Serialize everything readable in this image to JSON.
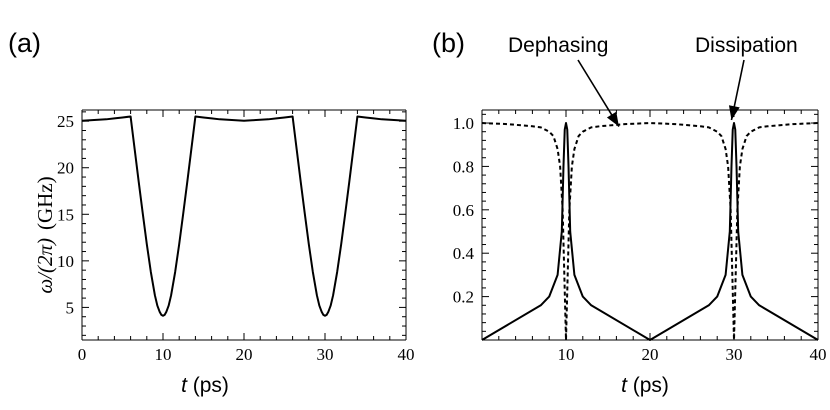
{
  "chart_data": [
    {
      "panel_label": "(a)",
      "type": "line",
      "xlabel_italic": "t",
      "xlabel_unit": " (ps)",
      "ylabel_math": "ω/(2π)",
      "ylabel_unit": "(GHz)",
      "xlim": [
        0,
        40
      ],
      "ylim": [
        1.5,
        26.2
      ],
      "xticks": [
        0,
        10,
        20,
        30,
        40
      ],
      "yticks": [
        5,
        10,
        15,
        20,
        25
      ],
      "series": [
        {
          "style": "solid",
          "x": [
            0,
            1,
            2,
            3,
            4,
            5,
            6,
            6.5,
            7,
            7.5,
            8,
            8.5,
            9,
            9.3,
            9.6,
            9.8,
            10,
            10.2,
            10.4,
            10.7,
            11,
            11.5,
            12,
            12.5,
            13,
            14,
            15,
            16,
            17,
            18,
            19,
            20,
            21,
            22,
            23,
            24,
            25,
            26,
            26.5,
            27,
            27.5,
            28,
            28.5,
            29,
            29.3,
            29.6,
            29.8,
            30,
            30.2,
            30.4,
            30.7,
            31,
            31.5,
            32,
            32.5,
            33,
            34,
            35,
            36,
            37,
            38,
            39,
            40
          ],
          "y": [
            25.05,
            25.1,
            25.15,
            25.2,
            25.3,
            25.4,
            25.5,
            22.0,
            18.5,
            15.1,
            11.8,
            8.8,
            6.3,
            5.2,
            4.5,
            4.2,
            4.1,
            4.2,
            4.5,
            5.2,
            6.3,
            8.8,
            11.8,
            15.1,
            18.5,
            25.5,
            25.4,
            25.3,
            25.2,
            25.15,
            25.1,
            25.05,
            25.1,
            25.15,
            25.2,
            25.3,
            25.4,
            25.5,
            22.0,
            18.5,
            15.1,
            11.8,
            8.8,
            6.3,
            5.2,
            4.5,
            4.2,
            4.1,
            4.2,
            4.5,
            5.2,
            6.3,
            8.8,
            11.8,
            15.1,
            18.5,
            25.5,
            25.4,
            25.3,
            25.2,
            25.15,
            25.1,
            25.05
          ]
        }
      ]
    },
    {
      "panel_label": "(b)",
      "type": "line",
      "xlabel_italic": "t",
      "xlabel_unit": " (ps)",
      "xlim": [
        0,
        40
      ],
      "ylim": [
        0,
        1.06
      ],
      "xticks": [
        10,
        20,
        30,
        40
      ],
      "yticks": [
        0.2,
        0.4,
        0.6,
        0.8,
        1.0
      ],
      "ytick_labels": [
        "0.2",
        "0.4",
        "0.6",
        "0.8",
        "1.0"
      ],
      "annotations": [
        {
          "text": "Dephasing",
          "target_x": 16.3,
          "target_y": 0.97
        },
        {
          "text": "Dissipation",
          "target_x": 29.7,
          "target_y": 1.0
        }
      ],
      "series": [
        {
          "style": "solid",
          "x": [
            0,
            7,
            8,
            9,
            9.5,
            9.7,
            9.85,
            10,
            10.15,
            10.3,
            10.5,
            11,
            12,
            13,
            20,
            27,
            28,
            29,
            29.5,
            29.7,
            29.85,
            30,
            30.15,
            30.3,
            30.5,
            31,
            32,
            33,
            40
          ],
          "y": [
            0.0,
            0.16,
            0.2,
            0.3,
            0.5,
            0.8,
            0.97,
            1.0,
            0.97,
            0.8,
            0.5,
            0.3,
            0.2,
            0.16,
            0.0,
            0.16,
            0.2,
            0.3,
            0.5,
            0.8,
            0.97,
            1.0,
            0.97,
            0.8,
            0.5,
            0.3,
            0.2,
            0.16,
            0.0
          ]
        },
        {
          "style": "dashed",
          "x": [
            0,
            3,
            6,
            7,
            8,
            8.5,
            9,
            9.3,
            9.6,
            9.8,
            10,
            10.2,
            10.4,
            10.7,
            11,
            11.5,
            12,
            13,
            14,
            17,
            20,
            23,
            26,
            27,
            28,
            28.5,
            29,
            29.3,
            29.6,
            29.8,
            30,
            30.2,
            30.4,
            30.7,
            31,
            31.5,
            32,
            33,
            34,
            37,
            40
          ],
          "y": [
            1.0,
            0.995,
            0.985,
            0.98,
            0.96,
            0.94,
            0.88,
            0.8,
            0.6,
            0.3,
            0.0,
            0.3,
            0.6,
            0.8,
            0.88,
            0.94,
            0.96,
            0.98,
            0.985,
            0.995,
            1.0,
            0.995,
            0.985,
            0.98,
            0.96,
            0.94,
            0.88,
            0.8,
            0.6,
            0.3,
            0.0,
            0.3,
            0.6,
            0.8,
            0.88,
            0.94,
            0.96,
            0.98,
            0.985,
            0.995,
            1.0
          ]
        }
      ]
    }
  ]
}
